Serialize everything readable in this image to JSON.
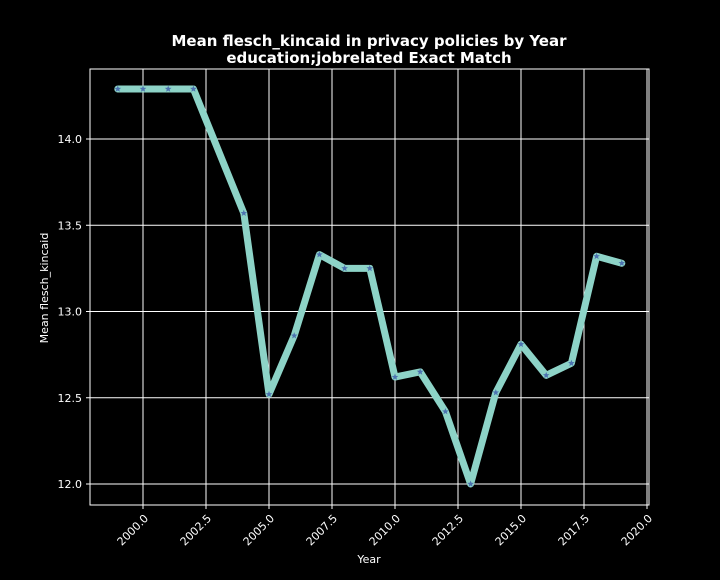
{
  "chart_data": {
    "type": "line",
    "title": "Mean flesch_kincaid in privacy policies by Year",
    "subtitle": "education;jobrelated Exact Match",
    "xlabel": "Year",
    "ylabel": "Mean flesch_kincaid",
    "xlim": [
      1999.0,
      2019.0
    ],
    "ylim": [
      12.0,
      14.3
    ],
    "x_ticks": [
      2000.0,
      2002.5,
      2005.0,
      2007.5,
      2010.0,
      2012.5,
      2015.0,
      2017.5,
      2020.0
    ],
    "x_tick_labels": [
      "2000.0",
      "2002.5",
      "2005.0",
      "2007.5",
      "2010.0",
      "2012.5",
      "2015.0",
      "2017.5",
      "2020.0"
    ],
    "y_ticks": [
      12.0,
      12.5,
      13.0,
      13.5,
      14.0
    ],
    "y_tick_labels": [
      "12.0",
      "12.5",
      "13.0",
      "13.5",
      "14.0"
    ],
    "grid": true,
    "series": [
      {
        "x": [
          1999,
          2000,
          2001,
          2002,
          2004,
          2005,
          2006,
          2007,
          2008,
          2009,
          2010,
          2011,
          2012,
          2013,
          2014,
          2015,
          2016,
          2017,
          2018,
          2019
        ],
        "values": [
          14.29,
          14.29,
          14.29,
          14.29,
          13.57,
          12.52,
          12.86,
          13.33,
          13.25,
          13.25,
          12.62,
          12.65,
          12.42,
          12.0,
          12.53,
          12.81,
          12.63,
          12.7,
          13.32,
          13.28
        ]
      }
    ],
    "colors": {
      "background": "#000000",
      "line": "#8dd3c7",
      "marker": "#4c72b0",
      "grid": "#ffffff",
      "text": "#ffffff"
    }
  }
}
